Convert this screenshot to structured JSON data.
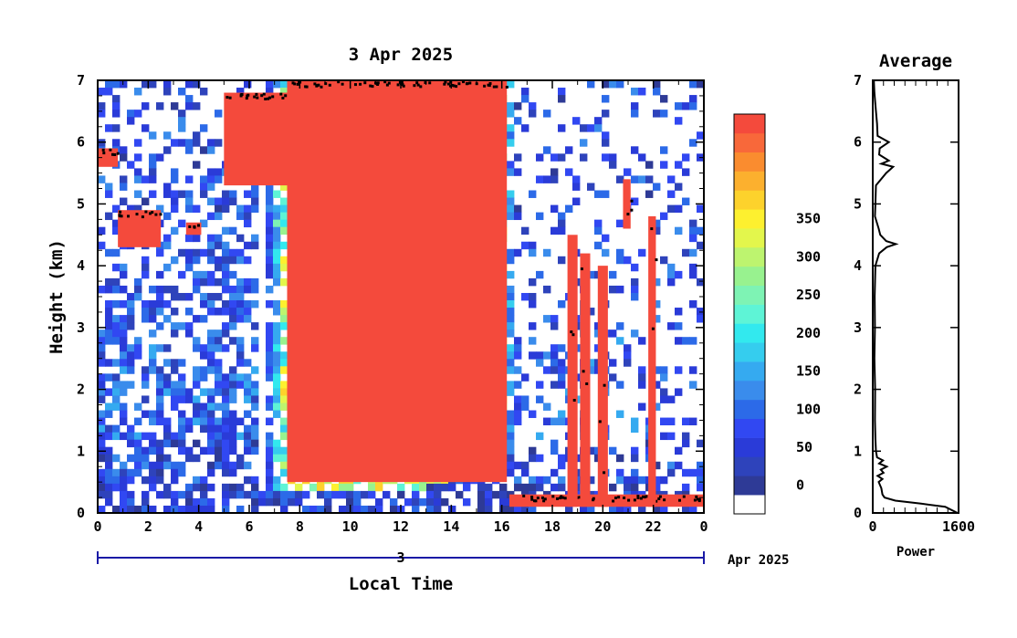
{
  "chart_data": [
    {
      "type": "heatmap",
      "title": "3 Apr 2025",
      "xlabel": "Local Time",
      "ylabel": "Height (km)",
      "xlim": [
        0,
        24
      ],
      "ylim": [
        0,
        7
      ],
      "x_ticks": [
        "0",
        "2",
        "4",
        "6",
        "8",
        "10",
        "12",
        "14",
        "16",
        "18",
        "20",
        "22",
        "0"
      ],
      "y_ticks": [
        "0",
        "1",
        "2",
        "3",
        "4",
        "5",
        "6",
        "7"
      ],
      "date_bar": {
        "day_label": "3",
        "month_year_label": "Apr 2025"
      },
      "colorbar": {
        "min": 0,
        "max": 380,
        "step": 25,
        "tick_labels": [
          "0",
          "50",
          "100",
          "150",
          "200",
          "250",
          "300",
          "350"
        ],
        "tick_values": [
          0,
          50,
          100,
          150,
          200,
          250,
          300,
          350
        ],
        "colors": [
          "#ffffff",
          "#2e3a96",
          "#2e43bb",
          "#2a3bd8",
          "#3148f2",
          "#2c6ae8",
          "#3a8cec",
          "#35aaf0",
          "#35cdee",
          "#32e9ee",
          "#5ef4d6",
          "#7ef3b4",
          "#98f28f",
          "#bdf46f",
          "#e3f64c",
          "#fdf02f",
          "#fdd22c",
          "#fcb02e",
          "#fa8c2f",
          "#f8683a",
          "#f44a3c"
        ]
      },
      "features": [
        {
          "name": "high cloud",
          "x": [
            0,
            0.8
          ],
          "y": [
            5.6,
            5.9
          ]
        },
        {
          "name": "mid cloud",
          "x": [
            0.8,
            2.5
          ],
          "y": [
            4.3,
            4.9
          ]
        },
        {
          "name": "mid cloud",
          "x": [
            3.5,
            4.1
          ],
          "y": [
            4.5,
            4.7
          ]
        },
        {
          "name": "ascending cloud layer",
          "x": [
            5,
            9.2
          ],
          "y": [
            5.3,
            6.8
          ]
        },
        {
          "name": "dense layer",
          "x": [
            7.5,
            16.2
          ],
          "y": [
            0.5,
            7
          ]
        },
        {
          "name": "cloud base",
          "x": [
            16.3,
            24
          ],
          "y": [
            0.1,
            0.3
          ]
        },
        {
          "name": "precipitation column",
          "x": [
            18.6,
            19.0
          ],
          "y": [
            0.1,
            4.5
          ]
        },
        {
          "name": "precipitation column",
          "x": [
            19.1,
            19.5
          ],
          "y": [
            0.1,
            4.2
          ]
        },
        {
          "name": "precipitation column",
          "x": [
            19.8,
            20.2
          ],
          "y": [
            0.1,
            4.0
          ]
        },
        {
          "name": "precipitation column",
          "x": [
            20.8,
            21.1
          ],
          "y": [
            4.6,
            5.4
          ]
        },
        {
          "name": "precipitation column",
          "x": [
            21.8,
            22.1
          ],
          "y": [
            0.1,
            4.8
          ]
        }
      ]
    },
    {
      "type": "line",
      "title": "Average",
      "xlabel": "Power",
      "xlim": [
        0,
        1600
      ],
      "x_ticks": [
        "0",
        "1600"
      ],
      "ylim": [
        0,
        7
      ],
      "y_ticks": [
        "0",
        "1",
        "2",
        "3",
        "4",
        "5",
        "6",
        "7"
      ],
      "series": [
        {
          "y": [
            0.0,
            0.1,
            0.15,
            0.2,
            0.25,
            0.3,
            0.4,
            0.5,
            0.55,
            0.6,
            0.65,
            0.7,
            0.75,
            0.8,
            0.85,
            0.9,
            1.0,
            1.2,
            1.5,
            2.0,
            2.5,
            3.0,
            3.5,
            4.0,
            4.2,
            4.3,
            4.35,
            4.4,
            4.5,
            4.6,
            4.8,
            5.0,
            5.3,
            5.5,
            5.6,
            5.65,
            5.7,
            5.8,
            5.9,
            6.0,
            6.1,
            6.3,
            6.5,
            6.8,
            7.0
          ],
          "x": [
            1580,
            1350,
            900,
            420,
            220,
            180,
            160,
            110,
            180,
            90,
            200,
            150,
            260,
            120,
            190,
            80,
            60,
            50,
            40,
            45,
            30,
            40,
            35,
            50,
            120,
            260,
            430,
            250,
            140,
            110,
            40,
            50,
            60,
            250,
            380,
            160,
            300,
            120,
            130,
            300,
            90,
            80,
            60,
            30,
            20
          ]
        }
      ]
    }
  ]
}
